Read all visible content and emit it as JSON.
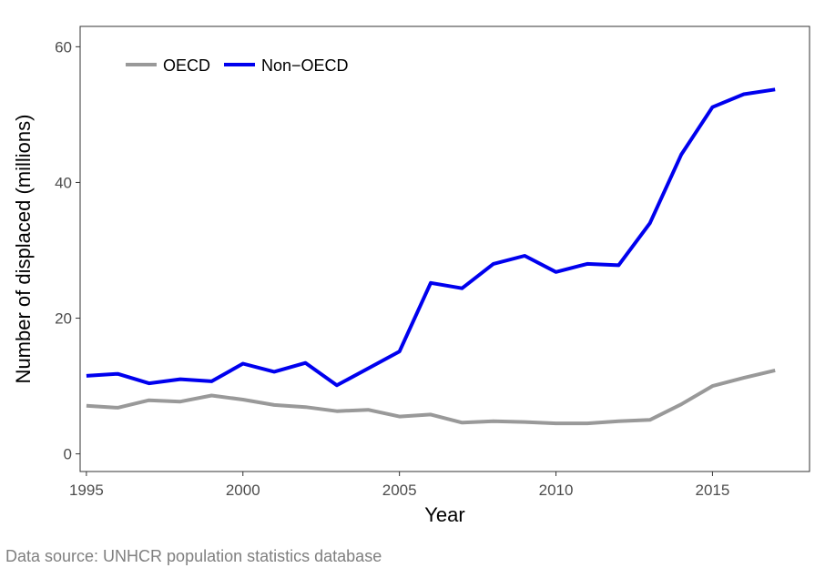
{
  "chart_data": {
    "type": "line",
    "title": "",
    "xlabel": "Year",
    "ylabel": "Number of displaced (millions)",
    "xlim": [
      1994.8,
      2018.1
    ],
    "ylim": [
      -2.6,
      63
    ],
    "x_ticks": [
      1995,
      2000,
      2005,
      2010,
      2015
    ],
    "x_tick_labels": [
      "1995",
      "2000",
      "2005",
      "2010",
      "2015"
    ],
    "y_ticks": [
      0,
      20,
      40,
      60
    ],
    "y_tick_labels": [
      "0",
      "20",
      "40",
      "60"
    ],
    "grid": false,
    "legend_position": "top-left",
    "x": [
      1995,
      1996,
      1997,
      1998,
      1999,
      2000,
      2001,
      2002,
      2003,
      2004,
      2005,
      2006,
      2007,
      2008,
      2009,
      2010,
      2011,
      2012,
      2013,
      2014,
      2015,
      2016,
      2017
    ],
    "series": [
      {
        "name": "OECD",
        "color": "#999999",
        "values": [
          7.1,
          6.8,
          7.9,
          7.7,
          8.6,
          8.0,
          7.2,
          6.9,
          6.3,
          6.5,
          5.5,
          5.8,
          4.6,
          4.8,
          4.7,
          4.5,
          4.5,
          4.8,
          5.0,
          7.3,
          10.0,
          11.2,
          12.3
        ]
      },
      {
        "name": "Non−OECD",
        "color": "#0000ee",
        "values": [
          11.5,
          11.8,
          10.4,
          11.0,
          10.7,
          13.3,
          12.1,
          13.4,
          10.1,
          12.6,
          15.1,
          25.2,
          24.4,
          28.0,
          29.2,
          26.8,
          28.0,
          27.8,
          34.0,
          44.1,
          51.1,
          53.0,
          53.7
        ]
      }
    ]
  },
  "caption": "Data source: UNHCR population statistics database"
}
